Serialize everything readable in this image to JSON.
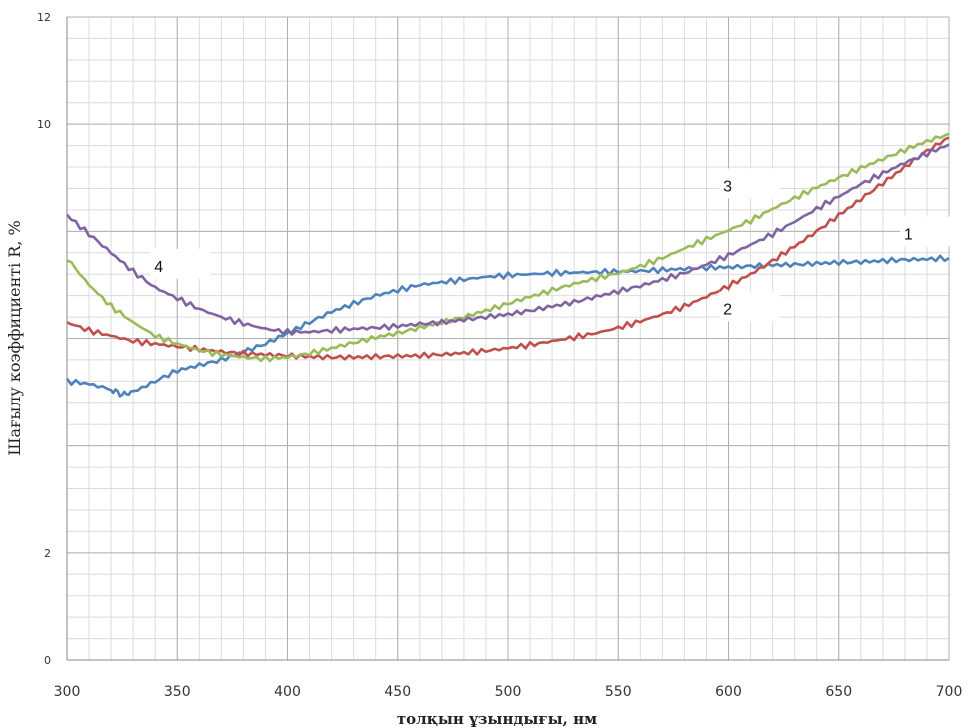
{
  "chart_data": {
    "type": "line",
    "title": "",
    "xlabel": "толқын ұзындығы, нм",
    "ylabel": "Шағылу коэффициенті R, %",
    "xlim": [
      300,
      700
    ],
    "ylim": [
      0,
      12
    ],
    "xticks": [
      300,
      350,
      400,
      450,
      500,
      550,
      600,
      650,
      700
    ],
    "yticks": [
      0,
      2,
      10,
      12
    ],
    "grid": true,
    "series": [
      {
        "name": "1",
        "color": "#4f81bd",
        "x": [
          300,
          310,
          320,
          325,
          330,
          340,
          350,
          360,
          370,
          380,
          390,
          400,
          410,
          420,
          430,
          440,
          450,
          460,
          470,
          480,
          490,
          500,
          510,
          520,
          530,
          540,
          550,
          560,
          570,
          580,
          590,
          600,
          610,
          620,
          630,
          640,
          650,
          660,
          670,
          680,
          690,
          700
        ],
        "y": [
          5.2,
          5.15,
          5.05,
          4.95,
          5.0,
          5.2,
          5.4,
          5.5,
          5.6,
          5.75,
          5.9,
          6.1,
          6.3,
          6.5,
          6.65,
          6.8,
          6.9,
          7.0,
          7.05,
          7.1,
          7.15,
          7.18,
          7.2,
          7.22,
          7.23,
          7.24,
          7.25,
          7.26,
          7.28,
          7.3,
          7.32,
          7.33,
          7.35,
          7.37,
          7.38,
          7.4,
          7.42,
          7.43,
          7.45,
          7.47,
          7.48,
          7.5
        ],
        "label_text": "1"
      },
      {
        "name": "2",
        "color": "#c0504d",
        "x": [
          300,
          310,
          320,
          330,
          340,
          350,
          360,
          370,
          380,
          390,
          400,
          410,
          420,
          430,
          440,
          450,
          460,
          470,
          480,
          490,
          500,
          510,
          520,
          530,
          540,
          550,
          560,
          570,
          580,
          590,
          600,
          610,
          620,
          630,
          640,
          650,
          660,
          670,
          680,
          690,
          700
        ],
        "y": [
          6.3,
          6.15,
          6.05,
          5.95,
          5.9,
          5.85,
          5.8,
          5.75,
          5.72,
          5.7,
          5.68,
          5.66,
          5.65,
          5.65,
          5.66,
          5.67,
          5.68,
          5.7,
          5.73,
          5.77,
          5.82,
          5.88,
          5.95,
          6.02,
          6.1,
          6.2,
          6.32,
          6.45,
          6.6,
          6.78,
          6.98,
          7.2,
          7.45,
          7.72,
          8.0,
          8.3,
          8.6,
          8.9,
          9.2,
          9.5,
          9.75
        ],
        "label_text": "2"
      },
      {
        "name": "3",
        "color": "#9bbb59",
        "x": [
          300,
          310,
          320,
          330,
          340,
          350,
          360,
          370,
          380,
          390,
          400,
          410,
          420,
          430,
          440,
          450,
          460,
          470,
          480,
          490,
          500,
          510,
          520,
          530,
          540,
          550,
          560,
          570,
          580,
          590,
          600,
          610,
          620,
          630,
          640,
          650,
          660,
          670,
          680,
          690,
          700
        ],
        "y": [
          7.5,
          7.0,
          6.6,
          6.3,
          6.05,
          5.9,
          5.78,
          5.7,
          5.65,
          5.62,
          5.65,
          5.72,
          5.82,
          5.92,
          6.02,
          6.1,
          6.2,
          6.3,
          6.4,
          6.52,
          6.65,
          6.78,
          6.9,
          7.02,
          7.12,
          7.22,
          7.35,
          7.5,
          7.68,
          7.85,
          8.02,
          8.2,
          8.42,
          8.62,
          8.82,
          9.0,
          9.18,
          9.35,
          9.52,
          9.68,
          9.82
        ],
        "label_text": "3"
      },
      {
        "name": "4",
        "color": "#8064a2",
        "x": [
          300,
          310,
          320,
          330,
          340,
          350,
          360,
          370,
          380,
          390,
          400,
          410,
          420,
          430,
          440,
          450,
          460,
          470,
          480,
          490,
          500,
          510,
          520,
          530,
          540,
          550,
          560,
          570,
          580,
          590,
          600,
          610,
          620,
          630,
          640,
          650,
          660,
          670,
          680,
          690,
          700
        ],
        "y": [
          8.3,
          7.95,
          7.6,
          7.25,
          6.95,
          6.75,
          6.55,
          6.4,
          6.28,
          6.18,
          6.12,
          6.12,
          6.15,
          6.18,
          6.2,
          6.23,
          6.27,
          6.3,
          6.35,
          6.4,
          6.45,
          6.52,
          6.6,
          6.68,
          6.78,
          6.88,
          6.98,
          7.1,
          7.22,
          7.38,
          7.55,
          7.75,
          7.95,
          8.18,
          8.42,
          8.65,
          8.88,
          9.08,
          9.28,
          9.45,
          9.62
        ],
        "label_text": "4"
      }
    ]
  }
}
